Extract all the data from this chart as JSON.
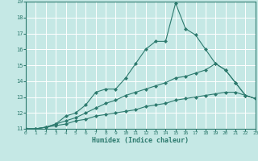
{
  "xlabel": "Humidex (Indice chaleur)",
  "background_color": "#c5e8e5",
  "grid_color": "#ffffff",
  "line_color": "#2d7a6e",
  "xlim": [
    0,
    23
  ],
  "ylim": [
    11,
    19
  ],
  "xticks": [
    0,
    1,
    2,
    3,
    4,
    5,
    6,
    7,
    8,
    9,
    10,
    11,
    12,
    13,
    14,
    15,
    16,
    17,
    18,
    19,
    20,
    21,
    22,
    23
  ],
  "yticks": [
    11,
    12,
    13,
    14,
    15,
    16,
    17,
    18,
    19
  ],
  "series": [
    {
      "x": [
        0,
        1,
        2,
        3,
        4,
        5,
        6,
        7,
        8,
        9,
        10,
        11,
        12,
        13,
        14,
        15,
        16,
        17,
        18,
        19,
        20,
        21,
        22,
        23
      ],
      "y": [
        11,
        11,
        11.1,
        11.3,
        11.8,
        12.0,
        12.5,
        13.3,
        13.5,
        13.5,
        14.2,
        15.1,
        16.0,
        16.5,
        16.5,
        18.9,
        17.3,
        16.9,
        16.0,
        15.1,
        14.7,
        13.9,
        13.1,
        12.9
      ]
    },
    {
      "x": [
        0,
        1,
        2,
        3,
        4,
        5,
        6,
        7,
        8,
        9,
        10,
        11,
        12,
        13,
        14,
        15,
        16,
        17,
        18,
        19,
        20,
        21,
        22,
        23
      ],
      "y": [
        11,
        11,
        11.1,
        11.3,
        11.5,
        11.7,
        12.0,
        12.3,
        12.6,
        12.8,
        13.1,
        13.3,
        13.5,
        13.7,
        13.9,
        14.2,
        14.3,
        14.5,
        14.7,
        15.1,
        14.7,
        13.9,
        13.1,
        12.9
      ]
    },
    {
      "x": [
        0,
        1,
        2,
        3,
        4,
        5,
        6,
        7,
        8,
        9,
        10,
        11,
        12,
        13,
        14,
        15,
        16,
        17,
        18,
        19,
        20,
        21,
        22,
        23
      ],
      "y": [
        11,
        11,
        11.1,
        11.2,
        11.3,
        11.5,
        11.6,
        11.8,
        11.9,
        12.0,
        12.1,
        12.2,
        12.4,
        12.5,
        12.6,
        12.8,
        12.9,
        13.0,
        13.1,
        13.2,
        13.3,
        13.3,
        13.1,
        12.9
      ]
    }
  ]
}
